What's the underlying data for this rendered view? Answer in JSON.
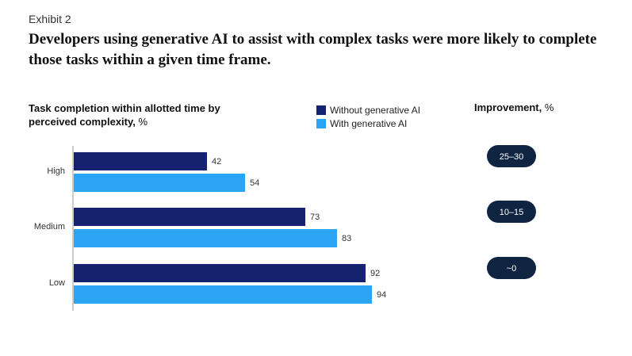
{
  "exhibit_label": "Exhibit 2",
  "headline": "Developers using generative AI to assist with complex tasks were more likely to complete those tasks within a given time frame.",
  "colors": {
    "without": "#142270",
    "with": "#2aa4f4",
    "pill": "#0e2440"
  },
  "chart_data": {
    "type": "bar",
    "orientation": "horizontal",
    "title_bold": "Task completion within allotted time by perceived complexity,",
    "title_unit": " %",
    "categories": [
      "High",
      "Medium",
      "Low"
    ],
    "series": [
      {
        "name": "Without generative AI",
        "values": [
          42,
          73,
          92
        ]
      },
      {
        "name": "With generative AI",
        "values": [
          54,
          83,
          94
        ]
      }
    ],
    "xlim": [
      0,
      100
    ],
    "grid": false,
    "legend_position": "top-right",
    "improvement": {
      "title_bold": "Improvement,",
      "title_unit": " %",
      "values": [
        "25–30",
        "10–15",
        "~0"
      ]
    }
  }
}
